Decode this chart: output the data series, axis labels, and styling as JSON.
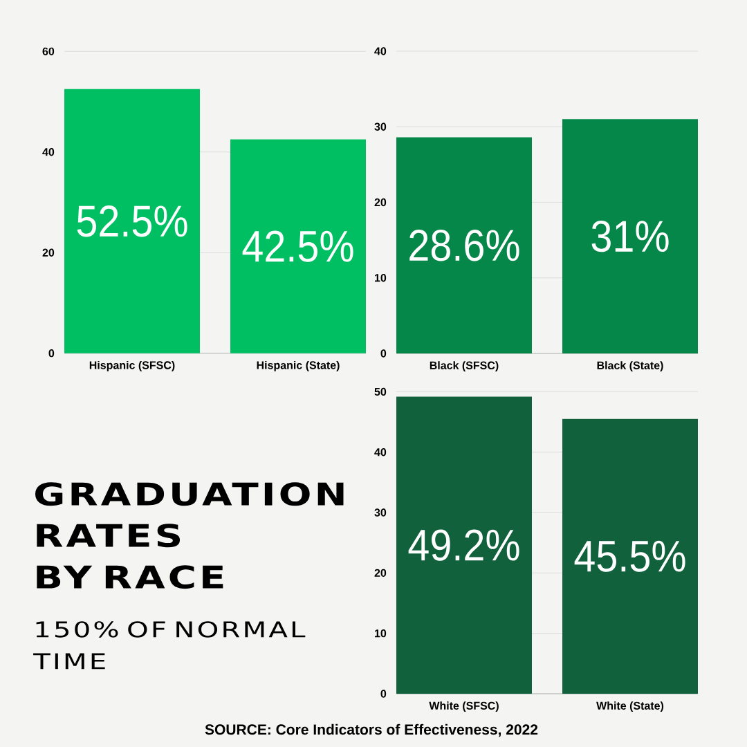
{
  "chart_data": [
    {
      "type": "bar",
      "categories": [
        "Hispanic (SFSC)",
        "Hispanic (State)"
      ],
      "values": [
        52.5,
        42.5
      ],
      "color": "#00bf63",
      "value_labels": [
        "52.5%",
        "42.5%"
      ],
      "ylim": [
        0,
        60
      ],
      "yticks": [
        0,
        20,
        40,
        60
      ],
      "grid": "y"
    },
    {
      "type": "bar",
      "categories": [
        "Black (SFSC)",
        "Black (State)"
      ],
      "values": [
        28.6,
        31
      ],
      "color": "#05874a",
      "value_labels": [
        "28.6%",
        "31%"
      ],
      "ylim": [
        0,
        40
      ],
      "yticks": [
        0,
        10,
        20,
        30,
        40
      ],
      "grid": "y"
    },
    {
      "type": "other",
      "title": "GRADUATION RATES BY RACE",
      "subtitle": "150% OF NORMAL TIME",
      "annotations": [
        "SOURCE: Core Indicators of Effectiveness, 2022"
      ]
    },
    {
      "type": "bar",
      "categories": [
        "White (SFSC)",
        "White (State)"
      ],
      "values": [
        49.2,
        45.5
      ],
      "color": "#11613c",
      "value_labels": [
        "49.2%",
        "45.5%"
      ],
      "ylim": [
        0,
        50
      ],
      "yticks": [
        0,
        10,
        20,
        30,
        40,
        50
      ],
      "grid": "y"
    }
  ]
}
